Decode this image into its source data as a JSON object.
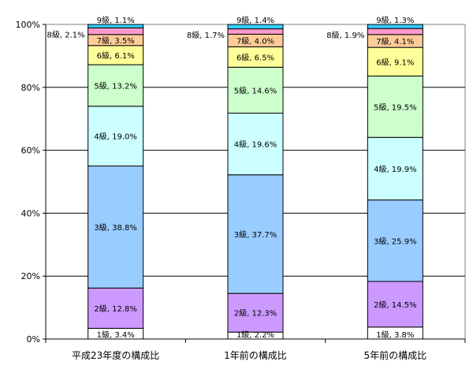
{
  "chart_data": {
    "type": "bar",
    "stacked": true,
    "percent": true,
    "title": "",
    "xlabel": "",
    "ylabel": "",
    "ylim": [
      0,
      100
    ],
    "yticks": [
      "0%",
      "20%",
      "40%",
      "60%",
      "80%",
      "100%"
    ],
    "grid": true,
    "legend": "none",
    "categories": [
      "平成23年度の構成比",
      "1年前の構成比",
      "5年前の構成比"
    ],
    "series": [
      {
        "name": "1級",
        "color": "#ffffff",
        "values": [
          3.4,
          2.2,
          3.8
        ],
        "labels": [
          "1級, 3.4%",
          "1級, 2.2%",
          "1級, 3.8%"
        ]
      },
      {
        "name": "2級",
        "color": "#cc99ff",
        "values": [
          12.8,
          12.3,
          14.5
        ],
        "labels": [
          "2級, 12.8%",
          "2級, 12.3%",
          "2級, 14.5%"
        ]
      },
      {
        "name": "3級",
        "color": "#99ccff",
        "values": [
          38.8,
          37.7,
          25.9
        ],
        "labels": [
          "3級, 38.8%",
          "3級, 37.7%",
          "3級, 25.9%"
        ]
      },
      {
        "name": "4級",
        "color": "#ccffff",
        "values": [
          19.0,
          19.6,
          19.9
        ],
        "labels": [
          "4級, 19.0%",
          "4級, 19.6%",
          "4級, 19.9%"
        ]
      },
      {
        "name": "5級",
        "color": "#ccffcc",
        "values": [
          13.2,
          14.6,
          19.5
        ],
        "labels": [
          "5級, 13.2%",
          "5級, 14.6%",
          "5級, 19.5%"
        ]
      },
      {
        "name": "6級",
        "color": "#ffff99",
        "values": [
          6.1,
          6.5,
          9.1
        ],
        "labels": [
          "6級, 6.1%",
          "6級, 6.5%",
          "6級, 9.1%"
        ]
      },
      {
        "name": "7級",
        "color": "#ffcc99",
        "values": [
          3.5,
          4.0,
          4.1
        ],
        "labels": [
          "7級, 3.5%",
          "7級, 4.0%",
          "7級, 4.1%"
        ]
      },
      {
        "name": "8級",
        "color": "#ff99cc",
        "values": [
          2.1,
          1.7,
          1.9
        ],
        "labels": [
          "8級, 2.1%",
          "8級, 1.7%",
          "8級, 1.9%"
        ]
      },
      {
        "name": "9級",
        "color": "#33ccff",
        "values": [
          1.1,
          1.4,
          1.3
        ],
        "labels": [
          "9級, 1.1%",
          "9級, 1.4%",
          "9級, 1.3%"
        ]
      }
    ]
  }
}
